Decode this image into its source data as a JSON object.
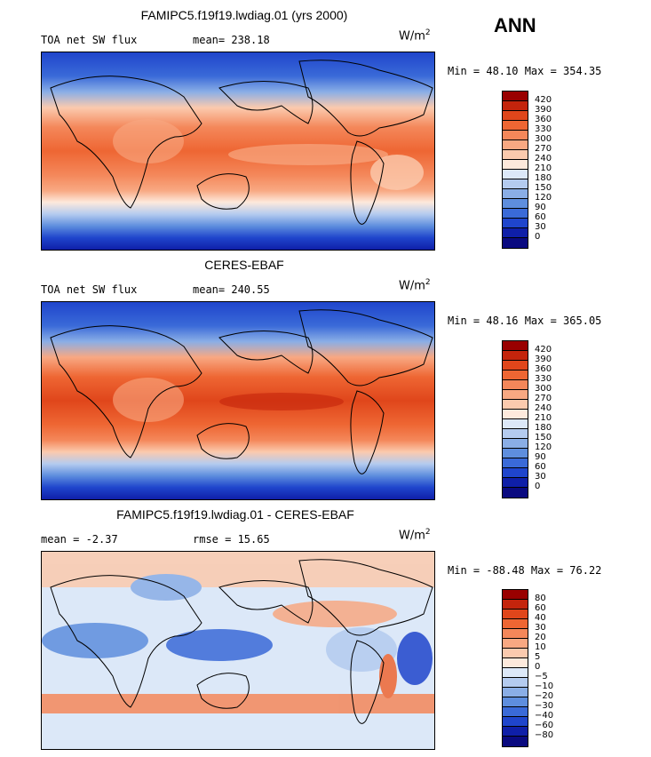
{
  "season": "ANN",
  "units_base": "W/m",
  "units_exp": "2",
  "panels": [
    {
      "title": "FAMIPC5.f19f19.lwdiag.01 (yrs 2000)",
      "left_label": "TOA net SW flux",
      "stat_label": "mean= 238.18",
      "minmax": "Min =  48.10 Max = 354.35",
      "levels": [
        "420",
        "390",
        "360",
        "330",
        "300",
        "270",
        "240",
        "210",
        "180",
        "150",
        "120",
        "90",
        "60",
        "30",
        "0"
      ],
      "colors": [
        "#990000",
        "#c4240c",
        "#e0461b",
        "#ee6633",
        "#f4875a",
        "#f8a882",
        "#fbcaae",
        "#fde9dc",
        "#dce8f8",
        "#b4cbef",
        "#8aaee6",
        "#5e8ede",
        "#3a6ad8",
        "#1f45cc",
        "#0f1fa8",
        "#0a0a80"
      ]
    },
    {
      "title": "CERES-EBAF",
      "left_label": "TOA net SW flux",
      "stat_label": "mean= 240.55",
      "minmax": "Min =  48.16 Max = 365.05",
      "levels": [
        "420",
        "390",
        "360",
        "330",
        "300",
        "270",
        "240",
        "210",
        "180",
        "150",
        "120",
        "90",
        "60",
        "30",
        "0"
      ],
      "colors": [
        "#990000",
        "#c4240c",
        "#e0461b",
        "#ee6633",
        "#f4875a",
        "#f8a882",
        "#fbcaae",
        "#fde9dc",
        "#dce8f8",
        "#b4cbef",
        "#8aaee6",
        "#5e8ede",
        "#3a6ad8",
        "#1f45cc",
        "#0f1fa8",
        "#0a0a80"
      ]
    },
    {
      "title": "FAMIPC5.f19f19.lwdiag.01 - CERES-EBAF",
      "left_label": "mean =  -2.37",
      "stat_label": "rmse =  15.65",
      "minmax": "Min = -88.48 Max =  76.22",
      "levels": [
        "80",
        "60",
        "40",
        "30",
        "20",
        "10",
        "5",
        "0",
        "−5",
        "−10",
        "−20",
        "−30",
        "−40",
        "−60",
        "−80"
      ],
      "colors": [
        "#990000",
        "#c4240c",
        "#e0461b",
        "#ee6633",
        "#f4875a",
        "#f8a882",
        "#fbcaae",
        "#fde9dc",
        "#dce8f8",
        "#b4cbef",
        "#8aaee6",
        "#5e8ede",
        "#3a6ad8",
        "#1f45cc",
        "#0f1fa8",
        "#0a0a80"
      ]
    }
  ]
}
